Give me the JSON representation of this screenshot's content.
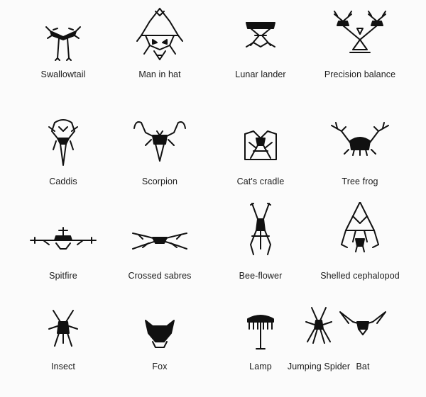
{
  "figures": [
    {
      "label": "Swallowtail",
      "icon": "swallowtail-biomorph"
    },
    {
      "label": "Man in hat",
      "icon": "man-in-hat-biomorph"
    },
    {
      "label": "Lunar lander",
      "icon": "lunar-lander-biomorph"
    },
    {
      "label": "Precision balance",
      "icon": "precision-balance-biomorph"
    },
    {
      "label": "Caddis",
      "icon": "caddis-biomorph"
    },
    {
      "label": "Scorpion",
      "icon": "scorpion-biomorph"
    },
    {
      "label": "Cat's cradle",
      "icon": "cats-cradle-biomorph"
    },
    {
      "label": "Tree frog",
      "icon": "tree-frog-biomorph"
    },
    {
      "label": "Spitfire",
      "icon": "spitfire-biomorph"
    },
    {
      "label": "Crossed sabres",
      "icon": "crossed-sabres-biomorph"
    },
    {
      "label": "Bee-flower",
      "icon": "bee-flower-biomorph"
    },
    {
      "label": "Shelled cephalopod",
      "icon": "shelled-cephalopod-biomorph"
    },
    {
      "label": "Insect",
      "icon": "insect-biomorph"
    },
    {
      "label": "Fox",
      "icon": "fox-biomorph"
    },
    {
      "label": "Lamp",
      "icon": "lamp-biomorph"
    },
    {
      "label": "Jumping Spider",
      "icon": "jumping-spider-biomorph"
    },
    {
      "label": "Bat",
      "icon": "bat-biomorph"
    }
  ]
}
